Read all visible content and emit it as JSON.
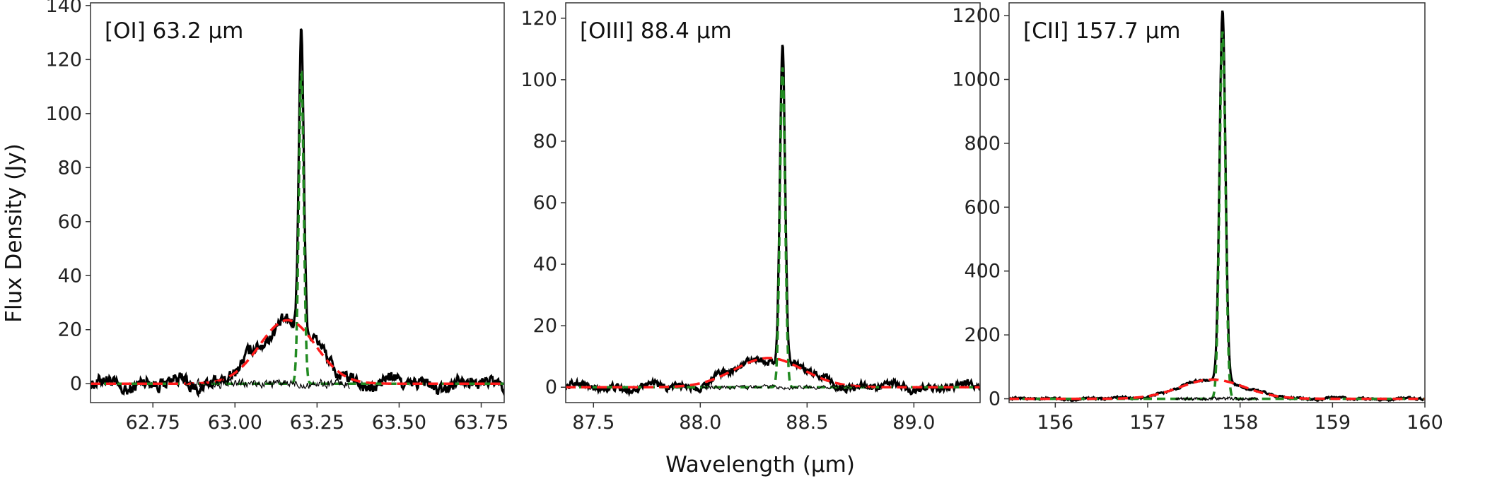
{
  "figure": {
    "ylabel": "Flux Density (Jy)",
    "xlabel": "Wavelength (μm)"
  },
  "colors": {
    "observed": "#000000",
    "residual": "#000000",
    "narrow_component": "#228B22",
    "broad_component": "#FF1A1A"
  },
  "chart_data": [
    {
      "type": "line",
      "title": "[OI] 63.2 μm",
      "xlim": [
        62.56,
        63.82
      ],
      "ylim": [
        -7,
        141
      ],
      "xticks": [
        62.75,
        63.0,
        63.25,
        63.5,
        63.75
      ],
      "xtick_labels": [
        "62.75",
        "63.00",
        "63.25",
        "63.50",
        "63.75"
      ],
      "yticks": [
        0,
        20,
        40,
        60,
        80,
        100,
        120,
        140
      ],
      "ytick_labels": [
        "0",
        "20",
        "40",
        "60",
        "80",
        "100",
        "120",
        "140"
      ],
      "noise": 1.8,
      "series": [
        {
          "key": "observed",
          "components": [
            {
              "amp": 23.5,
              "center": 63.16,
              "sigma": 0.085
            },
            {
              "amp": 112,
              "center": 63.202,
              "sigma": 0.0075
            }
          ],
          "noise_scale": 1.0
        },
        {
          "key": "narrow",
          "components": [
            {
              "amp": 115,
              "center": 63.202,
              "sigma": 0.0075
            }
          ]
        },
        {
          "key": "broad",
          "components": [
            {
              "amp": 23.5,
              "center": 63.16,
              "sigma": 0.085
            }
          ]
        },
        {
          "key": "residual",
          "range": [
            62.85,
            63.35
          ],
          "noise_scale": 0.8
        }
      ]
    },
    {
      "type": "line",
      "title": "[OIII] 88.4 μm",
      "xlim": [
        87.37,
        89.31
      ],
      "ylim": [
        -5,
        125
      ],
      "xticks": [
        87.5,
        88.0,
        88.5,
        89.0
      ],
      "xtick_labels": [
        "87.5",
        "88.0",
        "88.5",
        "89.0"
      ],
      "yticks": [
        0,
        20,
        40,
        60,
        80,
        100,
        120
      ],
      "ytick_labels": [
        "0",
        "20",
        "40",
        "60",
        "80",
        "100",
        "120"
      ],
      "noise": 0.9,
      "series": [
        {
          "key": "observed",
          "components": [
            {
              "amp": 9.5,
              "center": 88.32,
              "sigma": 0.16
            },
            {
              "amp": 103,
              "center": 88.385,
              "sigma": 0.012
            }
          ],
          "noise_scale": 1.0
        },
        {
          "key": "narrow",
          "components": [
            {
              "amp": 104,
              "center": 88.385,
              "sigma": 0.012
            }
          ]
        },
        {
          "key": "broad",
          "components": [
            {
              "amp": 9.5,
              "center": 88.32,
              "sigma": 0.16
            }
          ]
        },
        {
          "key": "residual",
          "range": [
            88.0,
            88.8
          ],
          "noise_scale": 0.6
        }
      ]
    },
    {
      "type": "line",
      "title": "[CII] 157.7 μm",
      "xlim": [
        155.5,
        160.0
      ],
      "ylim": [
        -12,
        1240
      ],
      "xticks": [
        156,
        157,
        158,
        159,
        160
      ],
      "xtick_labels": [
        "156",
        "157",
        "158",
        "159",
        "160"
      ],
      "yticks": [
        0,
        200,
        400,
        600,
        800,
        1000,
        1200
      ],
      "ytick_labels": [
        "0",
        "200",
        "400",
        "600",
        "800",
        "1000",
        "1200"
      ],
      "noise": 2.5,
      "series": [
        {
          "key": "observed",
          "components": [
            {
              "amp": 60,
              "center": 157.7,
              "sigma": 0.35
            },
            {
              "amp": 1160,
              "center": 157.81,
              "sigma": 0.032
            }
          ],
          "noise_scale": 1.0
        },
        {
          "key": "narrow",
          "components": [
            {
              "amp": 1150,
              "center": 157.81,
              "sigma": 0.032
            }
          ]
        },
        {
          "key": "broad",
          "components": [
            {
              "amp": 60,
              "center": 157.7,
              "sigma": 0.35
            }
          ]
        },
        {
          "key": "residual",
          "range": [
            157.3,
            158.2
          ],
          "noise_scale": 1.5
        }
      ]
    }
  ]
}
